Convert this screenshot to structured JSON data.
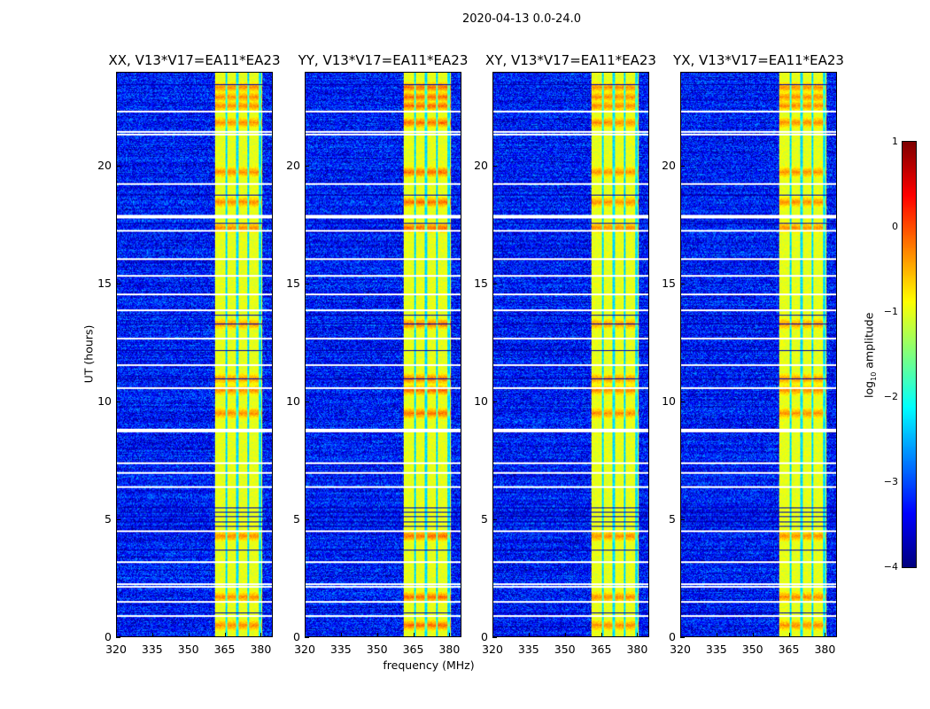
{
  "title": "2020-04-13 0.0-24.0",
  "chart_data": {
    "type": "heatmap",
    "xlabel": "frequency (MHz)",
    "ylabel": "UT (hours)",
    "xlim": [
      320,
      385
    ],
    "ylim": [
      0,
      24
    ],
    "xticks": [
      "320",
      "335",
      "350",
      "365",
      "380"
    ],
    "xtick_values": [
      320,
      335,
      350,
      365,
      380
    ],
    "yticks": [
      "0",
      "5",
      "10",
      "15",
      "20"
    ],
    "ytick_values": [
      0,
      5,
      10,
      15,
      20
    ],
    "panels": [
      {
        "title": "XX, V13*V17=EA11*EA23"
      },
      {
        "title": "YY, V13*V17=EA11*EA23"
      },
      {
        "title": "XY, V13*V17=EA11*EA23"
      },
      {
        "title": "YX, V13*V17=EA11*EA23"
      }
    ],
    "background_log_amplitude": -3.3,
    "band_mhz": [
      361,
      381
    ],
    "band_log_amplitude": -1.0,
    "band_gaps_mhz": [
      366,
      370.5,
      375,
      380
    ],
    "flagged_hours": [
      22.4,
      21.5,
      21.4,
      19.3,
      17.95,
      17.85,
      17.3,
      16.1,
      15.4,
      14.6,
      13.9,
      12.7,
      11.6,
      10.6,
      8.85,
      8.75,
      7.4,
      7.0,
      6.4,
      4.5,
      3.2,
      2.25,
      2.15,
      1.5,
      0.9
    ],
    "dropout_hours": [
      23.5,
      18.8,
      17.6,
      13.7,
      13.3,
      12.2,
      11.0,
      5.5,
      5.3,
      5.1,
      4.9,
      4.7,
      3.7,
      1.0
    ],
    "bright_hours": [
      23.4,
      23.0,
      22.6,
      21.9,
      19.8,
      18.5,
      17.4,
      13.3,
      11.0,
      10.5,
      9.5,
      4.3,
      1.7,
      0.5
    ],
    "colorbar": {
      "label": "log10 amplitude",
      "label_main": "log",
      "label_sub": "10",
      "label_rest": " amplitude",
      "range": [
        -4,
        1
      ],
      "ticks": [
        "1",
        "0",
        "−1",
        "−2",
        "−3",
        "−4"
      ],
      "tick_values": [
        1,
        0,
        -1,
        -2,
        -3,
        -4
      ],
      "colormap": "jet"
    }
  }
}
